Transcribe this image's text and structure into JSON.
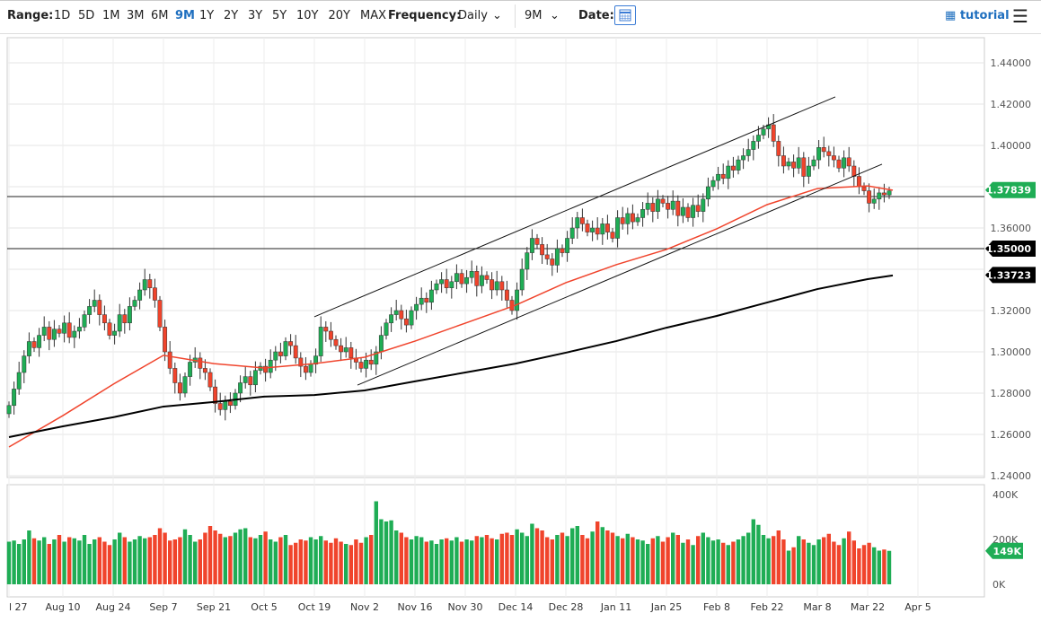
{
  "toolbar": {
    "range_label": "Range:",
    "ranges": [
      "1D",
      "5D",
      "1M",
      "3M",
      "6M",
      "9M",
      "1Y",
      "2Y",
      "3Y",
      "5Y",
      "10Y",
      "20Y",
      "MAX"
    ],
    "selected_range": "9M",
    "frequency_label": "Frequency:",
    "frequency": "Daily",
    "period": "9M",
    "date_label": "Date:",
    "tutorial": "tutorial"
  },
  "chart_data": {
    "type": "candlestick",
    "x_tick_labels": [
      "l 27",
      "Aug 10",
      "Aug 24",
      "Sep 7",
      "Sep 21",
      "Oct 5",
      "Oct 19",
      "Nov 2",
      "Nov 16",
      "Nov 30",
      "Dec 14",
      "Dec 28",
      "Jan 11",
      "Jan 25",
      "Feb 8",
      "Feb 22",
      "Mar 8",
      "Mar 22",
      "Apr 5"
    ],
    "y_ticks": [
      1.24,
      1.26,
      1.28,
      1.3,
      1.32,
      1.34,
      1.36,
      1.38,
      1.4,
      1.42,
      1.44
    ],
    "ylim": [
      1.24,
      1.44
    ],
    "grid": true,
    "closes": [
      1.274,
      1.282,
      1.29,
      1.298,
      1.305,
      1.302,
      1.308,
      1.312,
      1.306,
      1.311,
      1.309,
      1.314,
      1.307,
      1.31,
      1.312,
      1.318,
      1.322,
      1.325,
      1.318,
      1.314,
      1.308,
      1.31,
      1.318,
      1.314,
      1.322,
      1.325,
      1.33,
      1.335,
      1.331,
      1.325,
      1.312,
      1.3,
      1.292,
      1.285,
      1.28,
      1.288,
      1.295,
      1.297,
      1.292,
      1.29,
      1.283,
      1.275,
      1.272,
      1.276,
      1.274,
      1.28,
      1.285,
      1.288,
      1.284,
      1.291,
      1.293,
      1.29,
      1.296,
      1.3,
      1.298,
      1.305,
      1.303,
      1.297,
      1.293,
      1.29,
      1.294,
      1.298,
      1.312,
      1.31,
      1.306,
      1.303,
      1.3,
      1.302,
      1.297,
      1.295,
      1.292,
      1.296,
      1.294,
      1.3,
      1.308,
      1.314,
      1.318,
      1.32,
      1.316,
      1.313,
      1.32,
      1.323,
      1.326,
      1.324,
      1.33,
      1.333,
      1.335,
      1.331,
      1.334,
      1.338,
      1.333,
      1.336,
      1.339,
      1.332,
      1.337,
      1.335,
      1.33,
      1.334,
      1.33,
      1.325,
      1.32,
      1.33,
      1.34,
      1.348,
      1.355,
      1.352,
      1.347,
      1.345,
      1.342,
      1.35,
      1.348,
      1.355,
      1.36,
      1.365,
      1.362,
      1.358,
      1.36,
      1.357,
      1.362,
      1.358,
      1.355,
      1.365,
      1.362,
      1.367,
      1.363,
      1.365,
      1.369,
      1.372,
      1.368,
      1.374,
      1.372,
      1.369,
      1.373,
      1.366,
      1.37,
      1.365,
      1.371,
      1.368,
      1.374,
      1.38,
      1.383,
      1.386,
      1.384,
      1.39,
      1.388,
      1.393,
      1.395,
      1.398,
      1.402,
      1.405,
      1.408,
      1.41,
      1.402,
      1.395,
      1.39,
      1.392,
      1.389,
      1.394,
      1.385,
      1.39,
      1.393,
      1.399,
      1.397,
      1.395,
      1.393,
      1.389,
      1.394,
      1.39,
      1.385,
      1.38,
      1.378,
      1.372,
      1.374,
      1.377,
      1.376,
      1.378
    ],
    "volume_k": [
      190,
      195,
      180,
      200,
      240,
      205,
      195,
      210,
      180,
      200,
      220,
      190,
      210,
      205,
      195,
      220,
      180,
      200,
      210,
      190,
      175,
      200,
      230,
      210,
      190,
      200,
      215,
      205,
      210,
      220,
      250,
      230,
      195,
      200,
      210,
      245,
      220,
      190,
      200,
      230,
      260,
      240,
      225,
      210,
      215,
      230,
      245,
      250,
      210,
      205,
      220,
      235,
      200,
      190,
      210,
      220,
      175,
      185,
      200,
      195,
      210,
      200,
      215,
      195,
      185,
      205,
      190,
      180,
      175,
      200,
      185,
      210,
      220,
      370,
      290,
      280,
      285,
      240,
      230,
      210,
      200,
      215,
      210,
      190,
      195,
      180,
      200,
      205,
      195,
      210,
      190,
      200,
      195,
      215,
      210,
      220,
      205,
      200,
      225,
      230,
      220,
      245,
      230,
      215,
      270,
      250,
      240,
      210,
      200,
      220,
      230,
      215,
      250,
      260,
      220,
      205,
      235,
      280,
      255,
      240,
      230,
      215,
      205,
      225,
      210,
      200,
      195,
      180,
      205,
      215,
      190,
      210,
      230,
      220,
      185,
      200,
      175,
      215,
      230,
      210,
      195,
      200,
      185,
      175,
      190,
      200,
      215,
      230,
      290,
      265,
      220,
      205,
      215,
      240,
      200,
      150,
      165,
      215,
      200,
      185,
      175,
      200,
      210,
      225,
      190,
      175,
      205,
      235,
      195,
      160,
      175,
      185,
      165,
      150,
      155,
      149
    ],
    "volume_ticks": [
      "400K",
      "200K",
      "0K"
    ],
    "volume_label": "149K",
    "ma_red": [
      [
        "Jul 27",
        1.2539
      ],
      [
        "Aug 10",
        1.2691
      ],
      [
        "Aug 24",
        1.2843
      ],
      [
        "Sep 7",
        1.2983
      ],
      [
        "Sep 21",
        1.2943
      ],
      [
        "Oct 5",
        1.2922
      ],
      [
        "Oct 19",
        1.2943
      ],
      [
        "Nov 2",
        1.2974
      ],
      [
        "Nov 16",
        1.3052
      ],
      [
        "Nov 30",
        1.3139
      ],
      [
        "Dec 14",
        1.3226
      ],
      [
        "Dec 28",
        1.3335
      ],
      [
        "Jan 11",
        1.3422
      ],
      [
        "Jan 25",
        1.3496
      ],
      [
        "Feb 8",
        1.3596
      ],
      [
        "Feb 22",
        1.3713
      ],
      [
        "Mar 8",
        1.3791
      ],
      [
        "Mar 22",
        1.3804
      ],
      [
        "Mar 29",
        1.3783
      ]
    ],
    "ma_black": [
      [
        "Jul 27",
        1.2587
      ],
      [
        "Aug 10",
        1.2639
      ],
      [
        "Aug 24",
        1.2683
      ],
      [
        "Sep 7",
        1.2735
      ],
      [
        "Sep 21",
        1.2757
      ],
      [
        "Oct 5",
        1.2783
      ],
      [
        "Oct 19",
        1.2791
      ],
      [
        "Nov 2",
        1.2813
      ],
      [
        "Nov 16",
        1.2857
      ],
      [
        "Nov 30",
        1.29
      ],
      [
        "Dec 14",
        1.2943
      ],
      [
        "Dec 28",
        1.2996
      ],
      [
        "Jan 11",
        1.3052
      ],
      [
        "Jan 25",
        1.3117
      ],
      [
        "Feb 8",
        1.3174
      ],
      [
        "Feb 22",
        1.3239
      ],
      [
        "Mar 8",
        1.3304
      ],
      [
        "Mar 22",
        1.3352
      ],
      [
        "Mar 29",
        1.337
      ]
    ],
    "trendlines": [
      [
        [
          "Oct 19",
          1.317
        ],
        [
          "Mar 13",
          1.4235
        ]
      ],
      [
        [
          "Oct 31",
          1.2839
        ],
        [
          "Mar 26",
          1.3909
        ]
      ]
    ],
    "horizontal_lines": [
      1.3752,
      1.35
    ],
    "price_labels": [
      {
        "value": "1.37839",
        "color": "#1fad55"
      },
      {
        "value": "1.35000",
        "color": "#000000"
      },
      {
        "value": "1.33723",
        "color": "#000000"
      }
    ],
    "colors": {
      "up": "#1fad55",
      "down": "#f0442c",
      "ma50": "#f0442c",
      "ma200": "#000000"
    }
  }
}
